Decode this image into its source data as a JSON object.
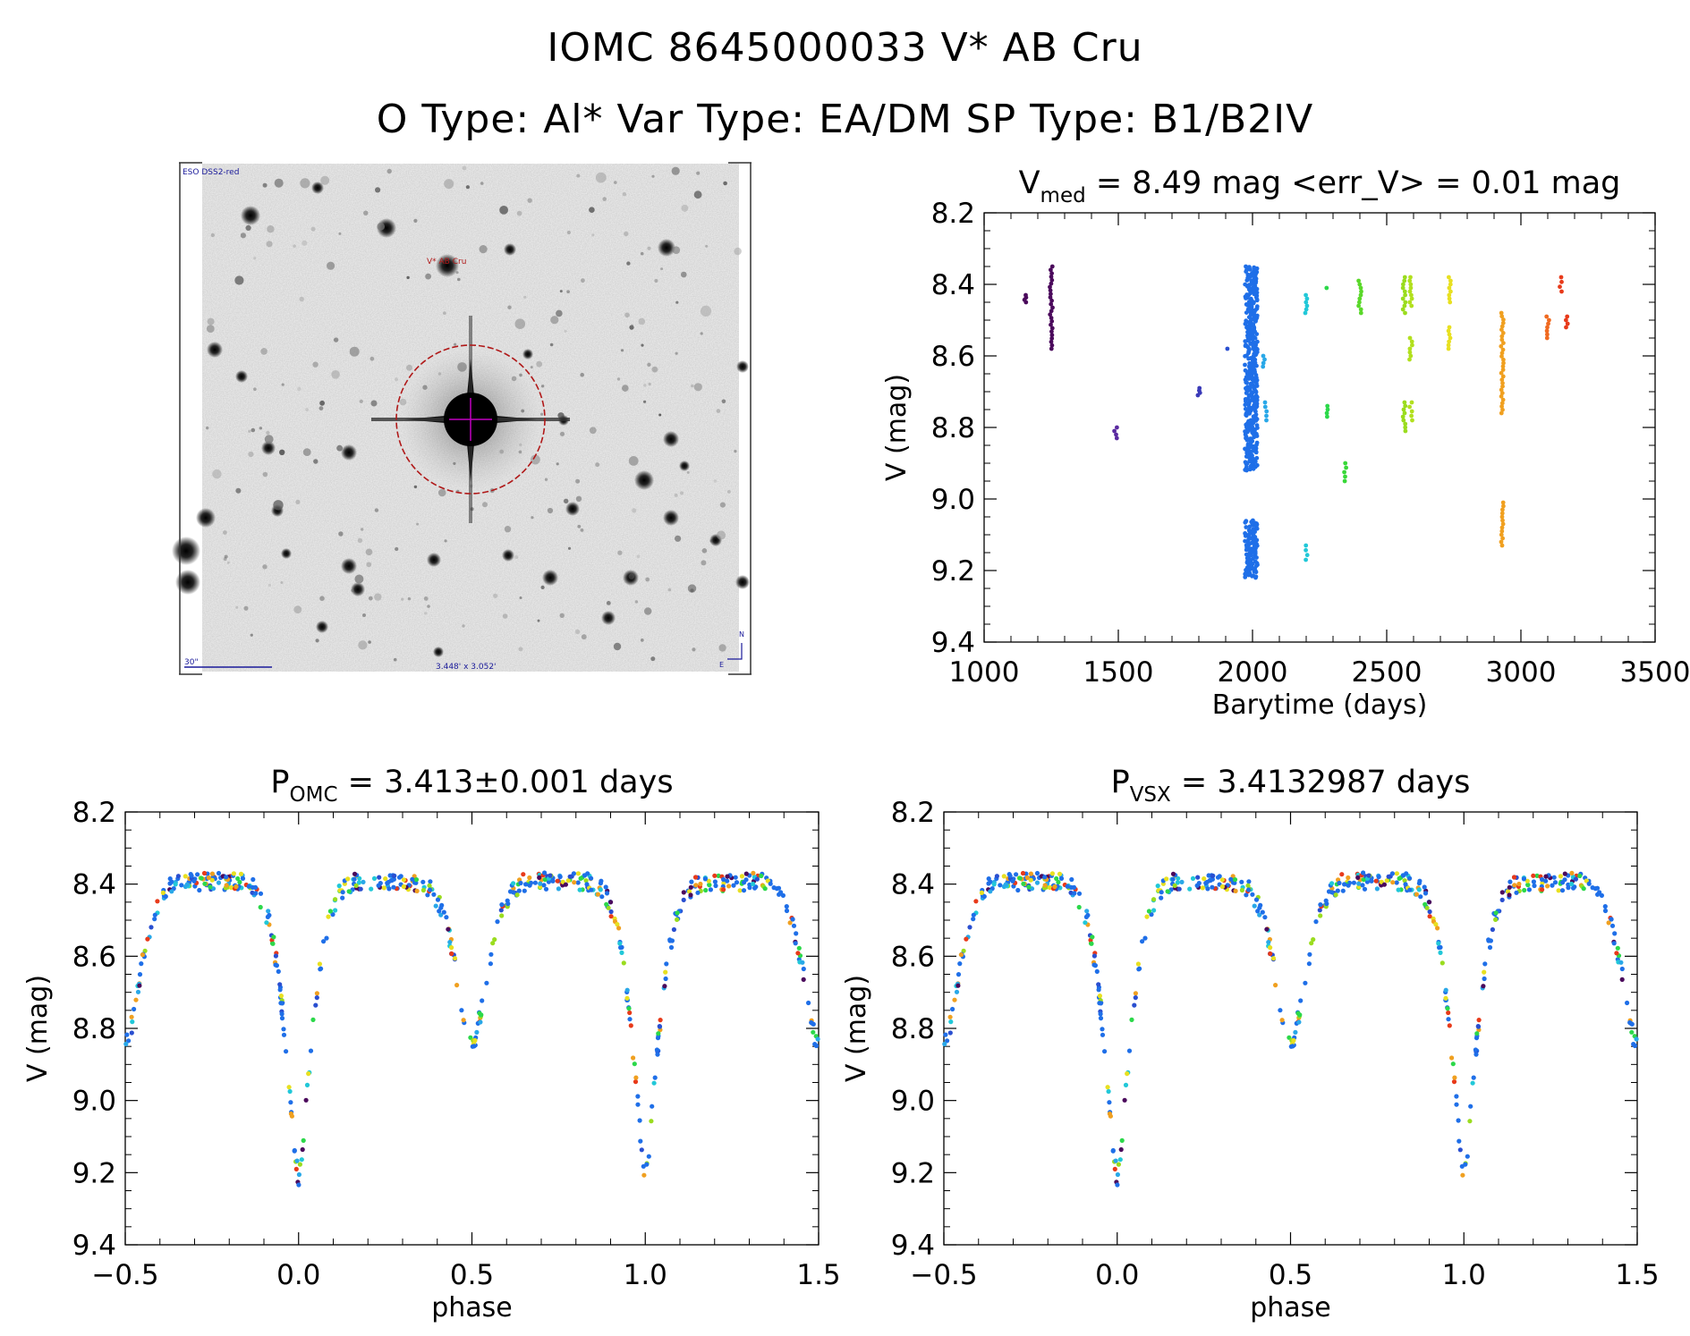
{
  "header": {
    "line1": "IOMC 8645000033   V* AB Cru",
    "line2": "O Type: Al*  Var Type: EA/DM  SP Type: B1/B2IV"
  },
  "finder_chart": {
    "survey_label": "ESO DSS2-red",
    "target_label": "V* AB Cru",
    "scale_label": "30\"",
    "fov_label": "3.448' x 3.052'",
    "north_label": "N",
    "east_label": "E",
    "circle_color": "#b01818",
    "crosshair_color": "#c000c0",
    "label_color": "#1a1a9a"
  },
  "chart_data": [
    {
      "id": "lightcurve",
      "type": "scatter",
      "title_main": "V",
      "title_sub": "med",
      "title_rest": " = 8.49 mag <err_V> = 0.01 mag",
      "xlabel": "Barytime (days)",
      "ylabel": "V (mag)",
      "xlim": [
        1000,
        3500
      ],
      "ylim": [
        9.4,
        8.2
      ],
      "xticks": [
        1000,
        1500,
        2000,
        2500,
        3000,
        3500
      ],
      "yticks": [
        8.2,
        8.4,
        8.6,
        8.8,
        9.0,
        9.2,
        9.4
      ],
      "color_scale": "rainbow by time",
      "groups": [
        {
          "t": 1155,
          "v": [
            8.43,
            8.45
          ],
          "color": "#4b0a5c"
        },
        {
          "t": 1250,
          "v": [
            8.35,
            8.58
          ],
          "color": "#4b0a5c"
        },
        {
          "t": 1490,
          "v": [
            8.8,
            8.83
          ],
          "color": "#5a2aa0"
        },
        {
          "t": 1800,
          "v": [
            8.69,
            8.71
          ],
          "color": "#3a3ab8"
        },
        {
          "t": 1910,
          "v": [
            8.58
          ],
          "color": "#2a4fd0"
        },
        {
          "t": 1995,
          "v": [
            8.35,
            8.92
          ],
          "color": "#1f6fe8"
        },
        {
          "t": 1995,
          "v": [
            9.06,
            9.22
          ],
          "color": "#1f6fe8"
        },
        {
          "t": 2040,
          "v": [
            8.6,
            8.63
          ],
          "color": "#29a8e8"
        },
        {
          "t": 2050,
          "v": [
            8.73,
            8.78
          ],
          "color": "#29a8e8"
        },
        {
          "t": 2200,
          "v": [
            8.43,
            8.48
          ],
          "color": "#22c8d8"
        },
        {
          "t": 2200,
          "v": [
            9.13,
            9.17
          ],
          "color": "#22c8d8"
        },
        {
          "t": 2275,
          "v": [
            8.41
          ],
          "color": "#2cd84a"
        },
        {
          "t": 2275,
          "v": [
            8.74,
            8.77
          ],
          "color": "#2cd84a"
        },
        {
          "t": 2345,
          "v": [
            8.9,
            8.95
          ],
          "color": "#38d838"
        },
        {
          "t": 2400,
          "v": [
            8.39,
            8.48
          ],
          "color": "#5ad82a"
        },
        {
          "t": 2565,
          "v": [
            8.38,
            8.48
          ],
          "color": "#9adc1e"
        },
        {
          "t": 2565,
          "v": [
            8.73,
            8.81
          ],
          "color": "#9adc1e"
        },
        {
          "t": 2590,
          "v": [
            8.38,
            8.46
          ],
          "color": "#b2e01e"
        },
        {
          "t": 2590,
          "v": [
            8.55,
            8.61
          ],
          "color": "#b2e01e"
        },
        {
          "t": 2590,
          "v": [
            8.73,
            8.78
          ],
          "color": "#b2e01e"
        },
        {
          "t": 2735,
          "v": [
            8.38,
            8.45
          ],
          "color": "#e8e020"
        },
        {
          "t": 2735,
          "v": [
            8.52,
            8.58
          ],
          "color": "#e8e020"
        },
        {
          "t": 2930,
          "v": [
            8.48,
            8.76
          ],
          "color": "#f0a020"
        },
        {
          "t": 2930,
          "v": [
            9.01,
            9.13
          ],
          "color": "#f0a020"
        },
        {
          "t": 3100,
          "v": [
            8.49,
            8.55
          ],
          "color": "#f06a20"
        },
        {
          "t": 3150,
          "v": [
            8.38,
            8.42
          ],
          "color": "#e83a1a"
        },
        {
          "t": 3170,
          "v": [
            8.49,
            8.52
          ],
          "color": "#e83a1a"
        }
      ]
    },
    {
      "id": "phase_omc",
      "type": "scatter",
      "title_main": "P",
      "title_sub": "OMC",
      "title_rest": " = 3.413±0.001 days",
      "xlabel": "phase",
      "ylabel": "V (mag)",
      "xlim": [
        -0.5,
        1.5
      ],
      "ylim": [
        9.4,
        8.2
      ],
      "xticks": [
        -0.5,
        0.0,
        0.5,
        1.0,
        1.5
      ],
      "xticklabels": [
        "−0.5",
        "0.0",
        "0.5",
        "1.0",
        "1.5"
      ],
      "yticks": [
        8.2,
        8.4,
        8.6,
        8.8,
        9.0,
        9.2,
        9.4
      ],
      "period_days": 3.413,
      "curve": {
        "max": 8.37,
        "primary_min": 9.21,
        "primary_phase": 0.0,
        "secondary_min": 8.85,
        "secondary_phase": 0.5
      }
    },
    {
      "id": "phase_vsx",
      "type": "scatter",
      "title_main": "P",
      "title_sub": "VSX",
      "title_rest": " = 3.4132987 days",
      "xlabel": "phase",
      "ylabel": "V (mag)",
      "xlim": [
        -0.5,
        1.5
      ],
      "ylim": [
        9.4,
        8.2
      ],
      "xticks": [
        -0.5,
        0.0,
        0.5,
        1.0,
        1.5
      ],
      "xticklabels": [
        "−0.5",
        "0.0",
        "0.5",
        "1.0",
        "1.5"
      ],
      "yticks": [
        8.2,
        8.4,
        8.6,
        8.8,
        9.0,
        9.2,
        9.4
      ],
      "period_days": 3.4132987,
      "curve": {
        "max": 8.37,
        "primary_min": 9.21,
        "primary_phase": 0.0,
        "secondary_min": 8.85,
        "secondary_phase": 0.5
      }
    }
  ]
}
